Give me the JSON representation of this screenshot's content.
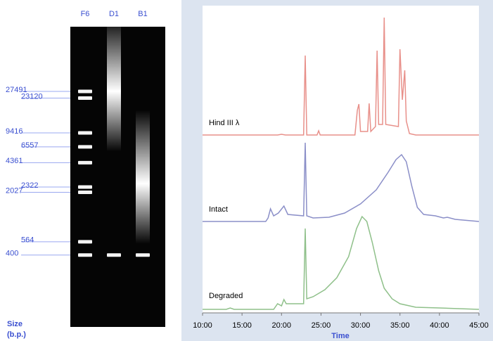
{
  "chart_data": [
    {
      "type": "gel",
      "y_label": [
        "Size",
        "(b.p.)"
      ],
      "log_scale": true,
      "ylim": [
        100,
        100000
      ],
      "yticks": [
        27491,
        23120,
        9416,
        6557,
        4361,
        2322,
        2027,
        564,
        400
      ],
      "lanes": [
        {
          "name": "F6",
          "bands": [
            27491,
            23120,
            9416,
            6557,
            4361,
            2322,
            2027,
            564,
            400
          ]
        },
        {
          "name": "D1",
          "bands": [
            400
          ],
          "smear_peak": 25000
        },
        {
          "type": "lane",
          "name": "B1",
          "bands": [
            400
          ],
          "smear_peak": 2300
        }
      ]
    },
    {
      "type": "line",
      "x_label": "Time",
      "xlim": [
        10,
        45
      ],
      "xticks": [
        {
          "value": 10,
          "label": "10:00"
        },
        {
          "value": 15,
          "label": "15:00"
        },
        {
          "value": 20,
          "label": "20:00"
        },
        {
          "value": 25,
          "label": "25:00"
        },
        {
          "value": 30,
          "label": "30:00"
        },
        {
          "value": 35,
          "label": "35:00"
        },
        {
          "value": 40,
          "label": "40:00"
        },
        {
          "value": 45,
          "label": "45:00"
        }
      ],
      "series": [
        {
          "name": "Hind III λ",
          "color": "#e8908a",
          "x": [
            10,
            19.5,
            20,
            20.5,
            22.8,
            23.0,
            23.2,
            24.5,
            24.7,
            24.9,
            29.3,
            29.6,
            29.8,
            30.0,
            30.9,
            31.1,
            31.3,
            31.9,
            32.1,
            32.3,
            32.8,
            33.0,
            33.2,
            34.8,
            35.0,
            35.3,
            35.6,
            35.8,
            36.2,
            37,
            45
          ],
          "values": [
            0,
            0,
            1,
            0,
            0,
            113,
            0,
            0,
            6,
            0,
            0,
            35,
            44,
            5,
            5,
            45,
            5,
            12,
            120,
            15,
            15,
            167,
            15,
            12,
            122,
            50,
            92,
            20,
            2,
            0,
            0
          ]
        },
        {
          "name": "Intact",
          "color": "#8b8fc8",
          "x": [
            10,
            18,
            18.3,
            18.6,
            19.0,
            19.6,
            20.3,
            20.8,
            22.8,
            23.0,
            23.2,
            24.0,
            26,
            28,
            30,
            32,
            33.5,
            34.5,
            35.2,
            35.8,
            36.5,
            37.2,
            38,
            39.5,
            40.5,
            41,
            42,
            45
          ],
          "values": [
            0,
            0,
            5,
            18,
            8,
            12,
            22,
            10,
            8,
            112,
            8,
            5,
            6,
            12,
            25,
            45,
            70,
            88,
            95,
            85,
            50,
            20,
            10,
            8,
            5,
            6,
            3,
            0
          ]
        },
        {
          "name": "Degraded",
          "color": "#8fc08a",
          "x": [
            10,
            13,
            13.5,
            14,
            19,
            19.5,
            20,
            20.3,
            20.6,
            22.8,
            23.0,
            23.2,
            24,
            25.5,
            27,
            28.5,
            29.5,
            30.2,
            30.8,
            31.5,
            32.3,
            33,
            34,
            35,
            37,
            40,
            45
          ],
          "values": [
            0,
            0,
            2,
            0,
            0,
            8,
            5,
            14,
            8,
            8,
            115,
            15,
            18,
            28,
            45,
            75,
            115,
            132,
            125,
            95,
            55,
            30,
            15,
            8,
            3,
            2,
            0
          ]
        }
      ]
    }
  ]
}
